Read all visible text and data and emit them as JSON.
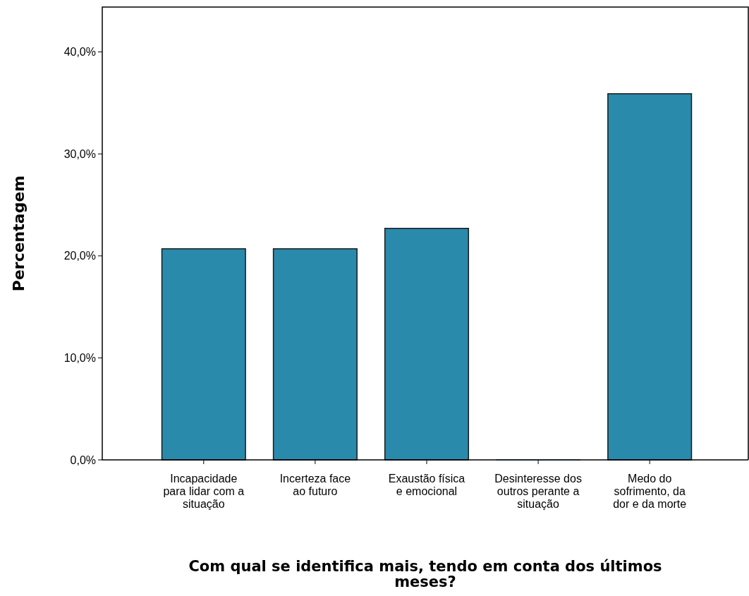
{
  "chart_data": {
    "type": "bar",
    "xlabel": "Com qual se identifica mais, tendo em conta dos últimos meses?",
    "ylabel": "Percentagem",
    "categories": [
      "Incapacidade para lidar com a situação",
      "Incerteza face ao futuro",
      "Exaustão física e emocional",
      "Desinteresse dos outros perante a situação",
      "Medo do sofrimento, da dor e da morte"
    ],
    "values": [
      20.7,
      20.7,
      22.7,
      0,
      35.9
    ],
    "color": "#2a8aab",
    "ylim": [
      0,
      44.4
    ],
    "yticks": [
      {
        "value": 0,
        "label": "0,0%"
      },
      {
        "value": 10,
        "label": "10,0%"
      },
      {
        "value": 20,
        "label": "20,0%"
      },
      {
        "value": 30,
        "label": "30,0%"
      },
      {
        "value": 40,
        "label": "40,0%"
      }
    ]
  }
}
